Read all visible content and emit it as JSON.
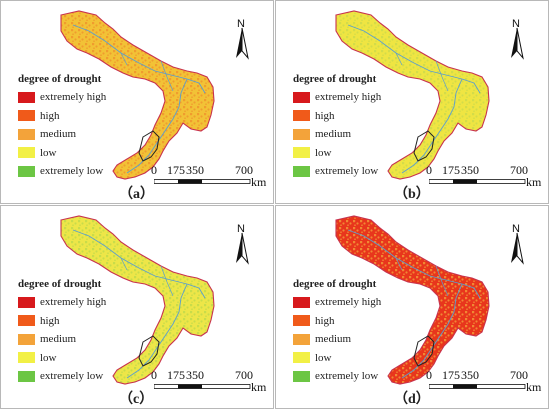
{
  "legend": {
    "title": "degree of drought",
    "items": [
      {
        "label": "extremely high",
        "color": "#d7191c"
      },
      {
        "label": "high",
        "color": "#f05a1a"
      },
      {
        "label": "medium",
        "color": "#f3a33a"
      },
      {
        "label": "low",
        "color": "#f2f045"
      },
      {
        "label": "extremely low",
        "color": "#6cc644"
      }
    ]
  },
  "north_arrow": {
    "label": "N",
    "icon": "north-arrow-icon"
  },
  "scale_bar": {
    "ticks": [
      "0",
      "175",
      "350",
      "700"
    ],
    "unit": "km"
  },
  "panels": [
    {
      "id": "a",
      "label": "（a）",
      "fill": "#f2c236",
      "texture": "#ee8f2a"
    },
    {
      "id": "b",
      "label": "（b）",
      "fill": "#efe542",
      "texture": "#c9d94a"
    },
    {
      "id": "c",
      "label": "（c）",
      "fill": "#ede648",
      "texture": "#bcd84b"
    },
    {
      "id": "d",
      "label": "（d）",
      "fill": "#e8361c",
      "texture": "#f3a33a"
    }
  ]
}
